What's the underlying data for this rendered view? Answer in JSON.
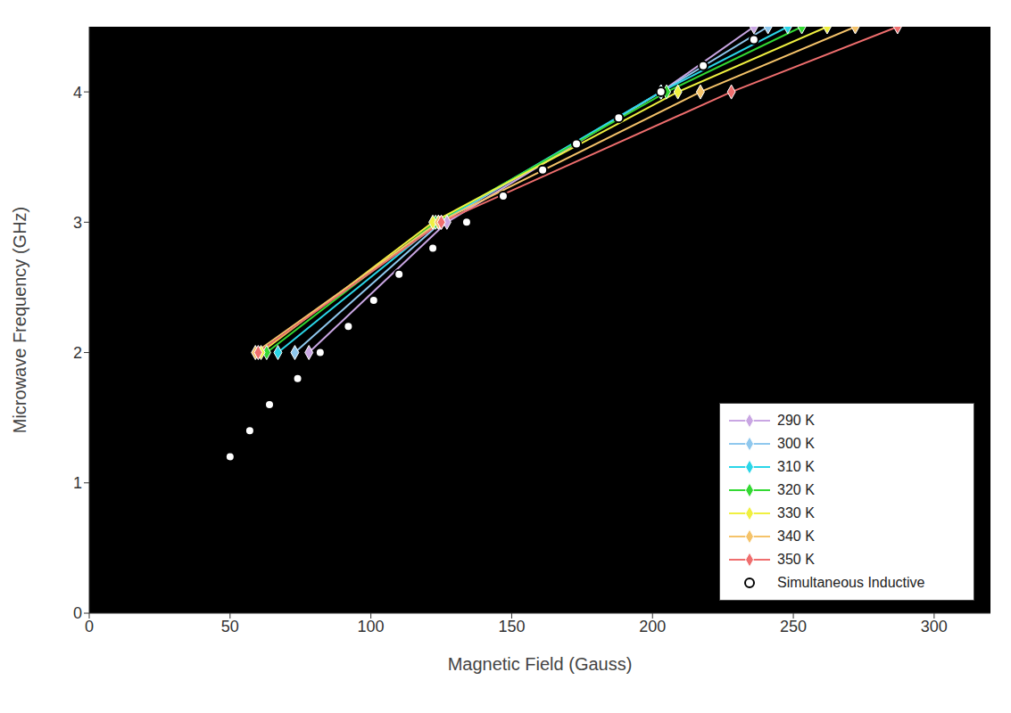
{
  "chart_data": {
    "type": "line",
    "xlabel": "Magnetic Field (Gauss)",
    "ylabel": "Microwave Frequency (GHz)",
    "xlim": [
      0,
      320
    ],
    "xticks": [
      0,
      50,
      100,
      150,
      200,
      250,
      300
    ],
    "ylim": [
      0,
      4.5
    ],
    "yticks": [
      0,
      1,
      2,
      3,
      4
    ],
    "grid": false,
    "legend": "lower right",
    "series": [
      {
        "name": "290 K",
        "type": "line",
        "color": "#c9a6e3",
        "marker": "diamond",
        "line_style": "solid",
        "x": [
          78,
          127,
          203,
          236
        ],
        "values": [
          2,
          3,
          4,
          4.5
        ]
      },
      {
        "name": "300 K",
        "type": "line",
        "color": "#8fc8ee",
        "marker": "diamond",
        "line_style": "solid",
        "x": [
          73,
          125,
          203,
          241
        ],
        "values": [
          2,
          3,
          4,
          4.5
        ]
      },
      {
        "name": "310 K",
        "type": "line",
        "color": "#2ad6e8",
        "marker": "diamond",
        "line_style": "solid",
        "x": [
          67,
          124,
          203,
          248
        ],
        "values": [
          2,
          3,
          4,
          4.5
        ]
      },
      {
        "name": "320 K",
        "type": "line",
        "color": "#33d933",
        "marker": "diamond",
        "line_style": "solid",
        "x": [
          63,
          123,
          205,
          253
        ],
        "values": [
          2,
          3,
          4,
          4.5
        ]
      },
      {
        "name": "330 K",
        "type": "line",
        "color": "#f0f040",
        "marker": "diamond",
        "line_style": "solid",
        "x": [
          61,
          122,
          209,
          262
        ],
        "values": [
          2,
          3,
          4,
          4.5
        ]
      },
      {
        "name": "340 K",
        "type": "line",
        "color": "#f5c36a",
        "marker": "diamond",
        "line_style": "solid",
        "x": [
          59,
          124,
          217,
          272
        ],
        "values": [
          2,
          3,
          4,
          4.5
        ]
      },
      {
        "name": "350 K",
        "type": "line",
        "color": "#ef6e6e",
        "marker": "diamond",
        "line_style": "solid",
        "x": [
          60,
          125,
          228,
          287
        ],
        "values": [
          2,
          3,
          4,
          4.5
        ]
      },
      {
        "name": "Simultaneous Inductive",
        "type": "scatter",
        "color": "#ffffff",
        "marker": "circle",
        "x": [
          50,
          57,
          64,
          74,
          82,
          92,
          101,
          110,
          122,
          134,
          147,
          161,
          173,
          188,
          203,
          218,
          236
        ],
        "values": [
          1.2,
          1.4,
          1.6,
          1.8,
          2.0,
          2.2,
          2.4,
          2.6,
          2.8,
          3.0,
          3.2,
          3.4,
          3.6,
          3.8,
          4.0,
          4.2,
          4.4
        ]
      }
    ]
  }
}
